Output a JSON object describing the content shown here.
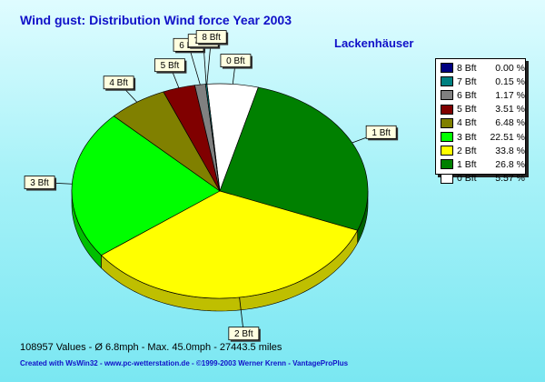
{
  "chart_data": {
    "type": "pie",
    "title": "Wind gust: Distribution Wind force  Year 2003",
    "subtitle": "Lackenhäuser",
    "slices": [
      {
        "label": "8 Bft",
        "value": 0.0,
        "value_text": "0.00 %",
        "color": "#000080"
      },
      {
        "label": "7 Bft",
        "value": 0.15,
        "value_text": "0.15 %",
        "color": "#008080"
      },
      {
        "label": "6 Bft",
        "value": 1.17,
        "value_text": "1.17 %",
        "color": "#808080"
      },
      {
        "label": "5 Bft",
        "value": 3.51,
        "value_text": "3.51 %",
        "color": "#800000"
      },
      {
        "label": "4 Bft",
        "value": 6.48,
        "value_text": "6.48 %",
        "color": "#808000"
      },
      {
        "label": "3 Bft",
        "value": 22.51,
        "value_text": "22.51 %",
        "color": "#00ff00"
      },
      {
        "label": "2 Bft",
        "value": 33.8,
        "value_text": "33.8 %",
        "color": "#ffff00"
      },
      {
        "label": "1 Bft",
        "value": 26.8,
        "value_text": "26.8 %",
        "color": "#008000"
      },
      {
        "label": "0 Bft",
        "value": 5.57,
        "value_text": "5.57 %",
        "color": "#ffffff"
      }
    ],
    "legend_position": "right"
  },
  "footer": {
    "stats": "108957 Values   -   Ø 6.8mph  -  Max. 45.0mph   -   27443.5 miles",
    "credits": "Created with WsWin32   -   www.pc-wetterstation.de   -   ©1999-2003 Werner Krenn - VantageProPlus"
  }
}
